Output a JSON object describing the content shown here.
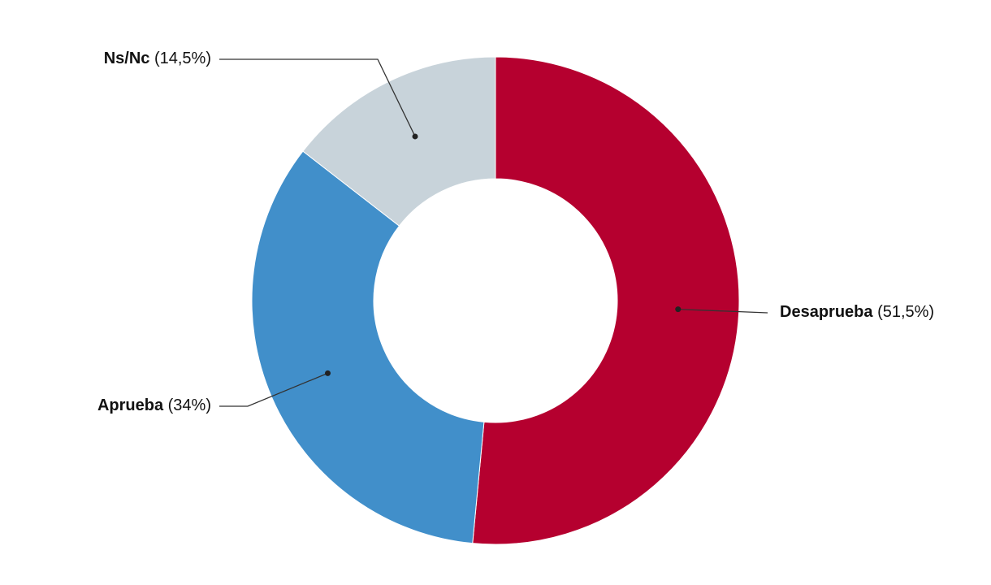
{
  "chart_data": {
    "type": "donut",
    "categories": [
      "Desaprueba",
      "Aprueba",
      "Ns/Nc"
    ],
    "values": [
      51.5,
      34,
      14.5
    ],
    "value_labels": [
      "(51,5%)",
      "(34%)",
      "(14,5%)"
    ],
    "colors": [
      "#b5002f",
      "#418fca",
      "#c8d3da"
    ]
  }
}
